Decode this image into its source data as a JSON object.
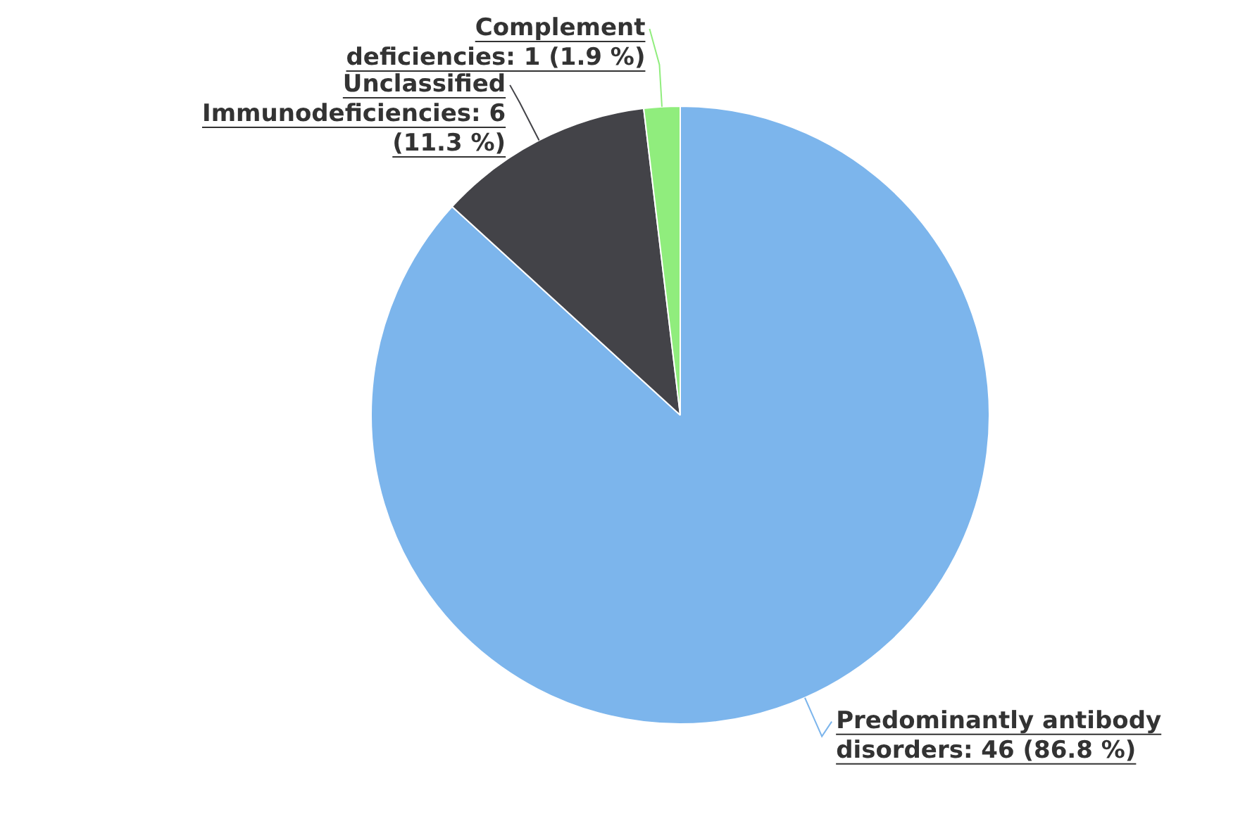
{
  "chart_data": {
    "type": "pie",
    "categories": [
      "Predominantly antibody disorders",
      "Unclassified Immunodeficiencies",
      "Complement deficiencies"
    ],
    "values": [
      46,
      6,
      1
    ],
    "colors": [
      "#7cb5ec",
      "#434348",
      "#90ed7d"
    ],
    "value_labels": [
      "46 (86.8 %)",
      "6 (11.3 %)",
      "1 (1.9 %)"
    ]
  }
}
